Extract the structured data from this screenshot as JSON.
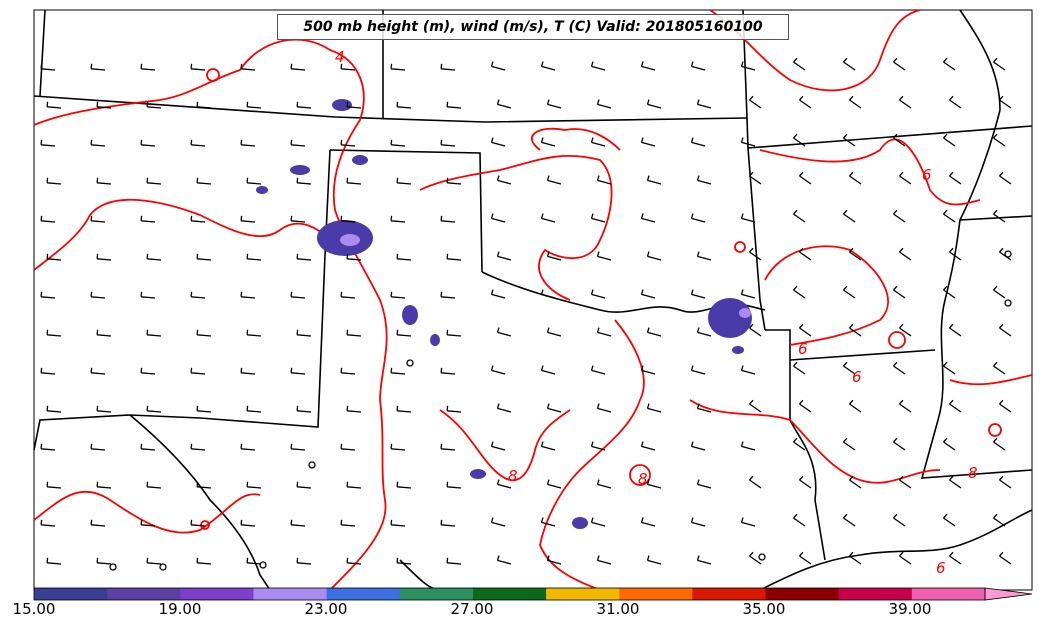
{
  "title": "500 mb height (m), wind (m/s), T (C) Valid: 201805160100",
  "colorbar": {
    "ticks": [
      "15.00",
      "19.00",
      "23.00",
      "27.00",
      "31.00",
      "35.00",
      "39.00"
    ],
    "colors": [
      "#3a3f96",
      "#5b3fa3",
      "#7b3fc9",
      "#a98bf2",
      "#3c6fe0",
      "#2e8f5e",
      "#0a6a1a",
      "#f0b800",
      "#ff6a00",
      "#d81800",
      "#8b0000",
      "#c8004a",
      "#f060b0",
      "#ff9ad0"
    ]
  },
  "contour_labels": [
    "4",
    "6",
    "6",
    "6",
    "8",
    "8",
    "8",
    "6"
  ],
  "colors": {
    "contour": "#ff0000",
    "border": "#000000",
    "shading_dark": "#4b3ba8",
    "shading_light": "#a98bf2"
  }
}
